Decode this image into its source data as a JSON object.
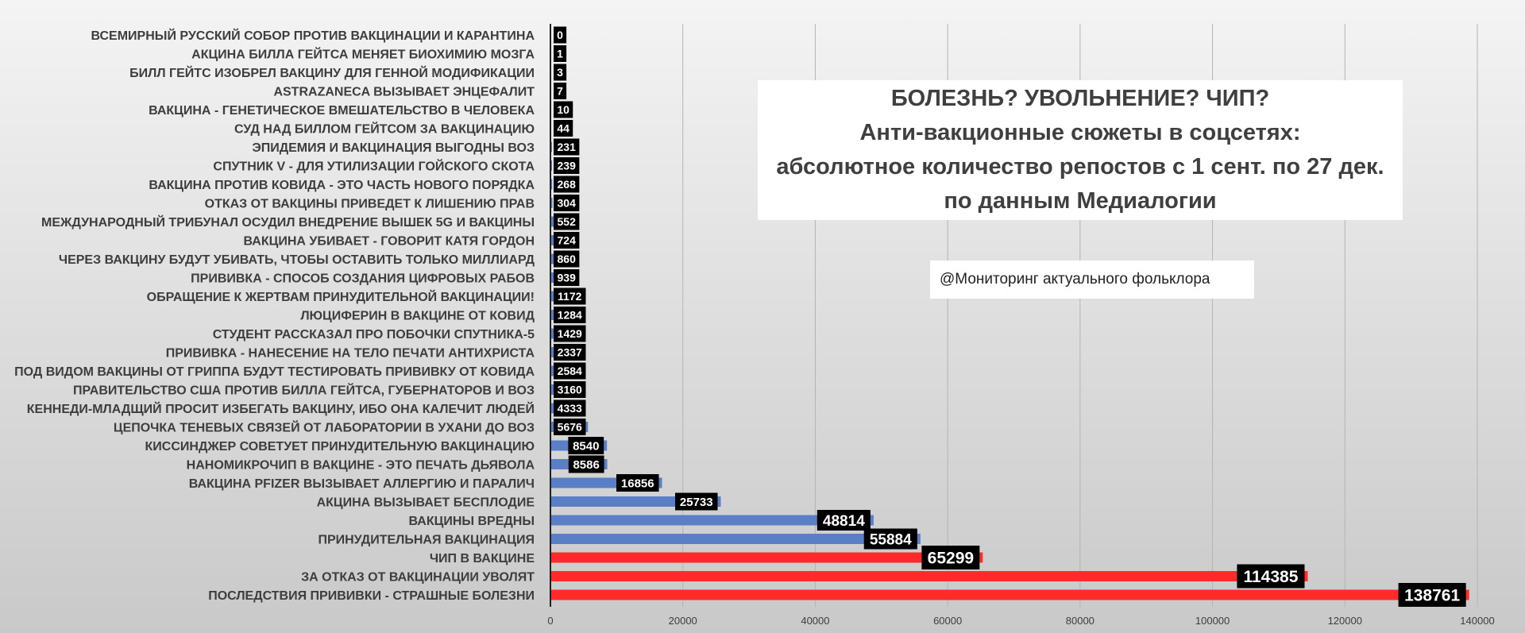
{
  "chart_data": {
    "type": "bar",
    "orientation": "horizontal",
    "title_lines": [
      "БОЛЕЗНЬ? УВОЛЬНЕНИЕ? ЧИП?",
      "Анти-вакционные сюжеты в соцсетях:",
      "абсолютное количество репостов с 1 сент. по 27 дек.",
      "по данным Медиалогии"
    ],
    "annotation": "@Мониторинг актуального фольклора",
    "xlim": [
      0,
      140000
    ],
    "x_ticks": [
      "0",
      "20000",
      "40000",
      "60000",
      "80000",
      "100000",
      "120000",
      "140000"
    ],
    "x_tick_values": [
      0,
      20000,
      40000,
      60000,
      80000,
      100000,
      120000,
      140000
    ],
    "grid": "vertical",
    "colors": {
      "default": "#5b7fc7",
      "highlight": "#ff2a2a",
      "label_bg": "#000000"
    },
    "categories": [
      "ВСЕМИРНЫЙ РУССКИЙ СОБОР ПРОТИВ ВАКЦИНАЦИИ И КАРАНТИНА",
      "АКЦИНА БИЛЛА ГЕЙТСА МЕНЯЕТ БИОХИМИЮ МОЗГА",
      "БИЛЛ ГЕЙТС ИЗОБРЕЛ ВАКЦИНУ ДЛЯ ГЕННОЙ МОДИФИКАЦИИ",
      "ASTRAZANECA ВЫЗЫВАЕТ ЭНЦЕФАЛИТ",
      "ВАКЦИНА - ГЕНЕТИЧЕСКОЕ ВМЕШАТЕЛЬСТВО В ЧЕЛОВЕКА",
      "СУД НАД БИЛЛОМ ГЕЙТСОМ ЗА ВАКЦИНАЦИЮ",
      "ЭПИДЕМИЯ И ВАКЦИНАЦИЯ ВЫГОДНЫ ВОЗ",
      "СПУТНИК V - ДЛЯ УТИЛИЗАЦИИ ГОЙСКОГО СКОТА",
      "ВАКЦИНА ПРОТИВ КОВИДА - ЭТО ЧАСТЬ НОВОГО ПОРЯДКА",
      "ОТКАЗ ОТ ВАКЦИНЫ ПРИВЕДЕТ К ЛИШЕНИЮ ПРАВ",
      "МЕЖДУНАРОДНЫЙ ТРИБУНАЛ ОСУДИЛ ВНЕДРЕНИЕ ВЫШЕК 5G И ВАКЦИНЫ",
      "ВАКЦИНА УБИВАЕТ - ГОВОРИТ КАТЯ ГОРДОН",
      "ЧЕРЕЗ ВАКЦИНУ БУДУТ УБИВАТЬ, ЧТОБЫ ОСТАВИТЬ ТОЛЬКО МИЛЛИАРД",
      "ПРИВИВКА - СПОСОБ СОЗДАНИЯ ЦИФРОВЫХ РАБОВ",
      "ОБРАЩЕНИЕ К ЖЕРТВАМ ПРИНУДИТЕЛЬНОЙ ВАКЦИНАЦИИ!",
      "ЛЮЦИФЕРИН В ВАКЦИНЕ ОТ КОВИД",
      "СТУДЕНТ  РАССКАЗАЛ ПРО ПОБОЧКИ СПУТНИКА-5",
      "ПРИВИВКА - НАНЕСЕНИЕ НА ТЕЛО ПЕЧАТИ АНТИХРИСТА",
      "ПОД ВИДОМ ВАКЦИНЫ ОТ ГРИППА БУДУТ ТЕСТИРОВАТЬ ПРИВИВКУ ОТ КОВИДА",
      "ПРАВИТЕЛЬСТВО США ПРОТИВ БИЛЛА ГЕЙТСА, ГУБЕРНАТОРОВ И ВОЗ",
      "КЕННЕДИ-МЛАДЩИЙ ПРОСИТ ИЗБЕГАТЬ ВАКЦИНУ, ИБО ОНА КАЛЕЧИТ ЛЮДЕЙ",
      "ЦЕПОЧКА ТЕНЕВЫХ СВЯЗЕЙ ОТ ЛАБОРАТОРИИ В УХАНИ ДО ВОЗ",
      "КИССИНДЖЕР СОВЕТУЕТ ПРИНУДИТЕЛЬНУЮ ВАКЦИНАЦИЮ",
      "НАНОМИКРОЧИП В ВАКЦИНЕ - ЭТО ПЕЧАТЬ ДЬЯВОЛА",
      "ВАКЦИНА PFIZER ВЫЗЫВАЕТ АЛЛЕРГИЮ И ПАРАЛИЧ",
      "АКЦИНА ВЫЗЫВАЕТ БЕСПЛОДИЕ",
      "ВАКЦИНЫ ВРЕДНЫ",
      "ПРИНУДИТЕЛЬНАЯ ВАКЦИНАЦИЯ",
      "ЧИП В ВАКЦИНЕ",
      "ЗА ОТКАЗ ОТ ВАКЦИНАЦИИ УВОЛЯТ",
      "ПОСЛЕДСТВИЯ ПРИВИВКИ - СТРАШНЫЕ БОЛЕЗНИ"
    ],
    "values": [
      0,
      1,
      3,
      7,
      10,
      44,
      231,
      239,
      268,
      304,
      552,
      724,
      860,
      939,
      1172,
      1284,
      1429,
      2337,
      2584,
      3160,
      4333,
      5676,
      8540,
      8586,
      16856,
      25733,
      48814,
      55884,
      65299,
      114385,
      138761
    ],
    "value_labels": [
      "0",
      "1",
      "3",
      "7",
      "10",
      "44",
      "231",
      "239",
      "268",
      "304",
      "552",
      "724",
      "860",
      "939",
      "1172",
      "1284",
      "1429",
      "2337",
      "2584",
      "3160",
      "4333",
      "5676",
      "8540",
      "8586",
      "16856",
      "25733",
      "48814",
      "55884",
      "65299",
      "114385",
      "138761"
    ],
    "highlight": [
      false,
      false,
      false,
      false,
      false,
      false,
      false,
      false,
      false,
      false,
      false,
      false,
      false,
      false,
      false,
      false,
      false,
      false,
      false,
      false,
      false,
      false,
      false,
      false,
      false,
      false,
      false,
      false,
      true,
      true,
      true
    ]
  }
}
